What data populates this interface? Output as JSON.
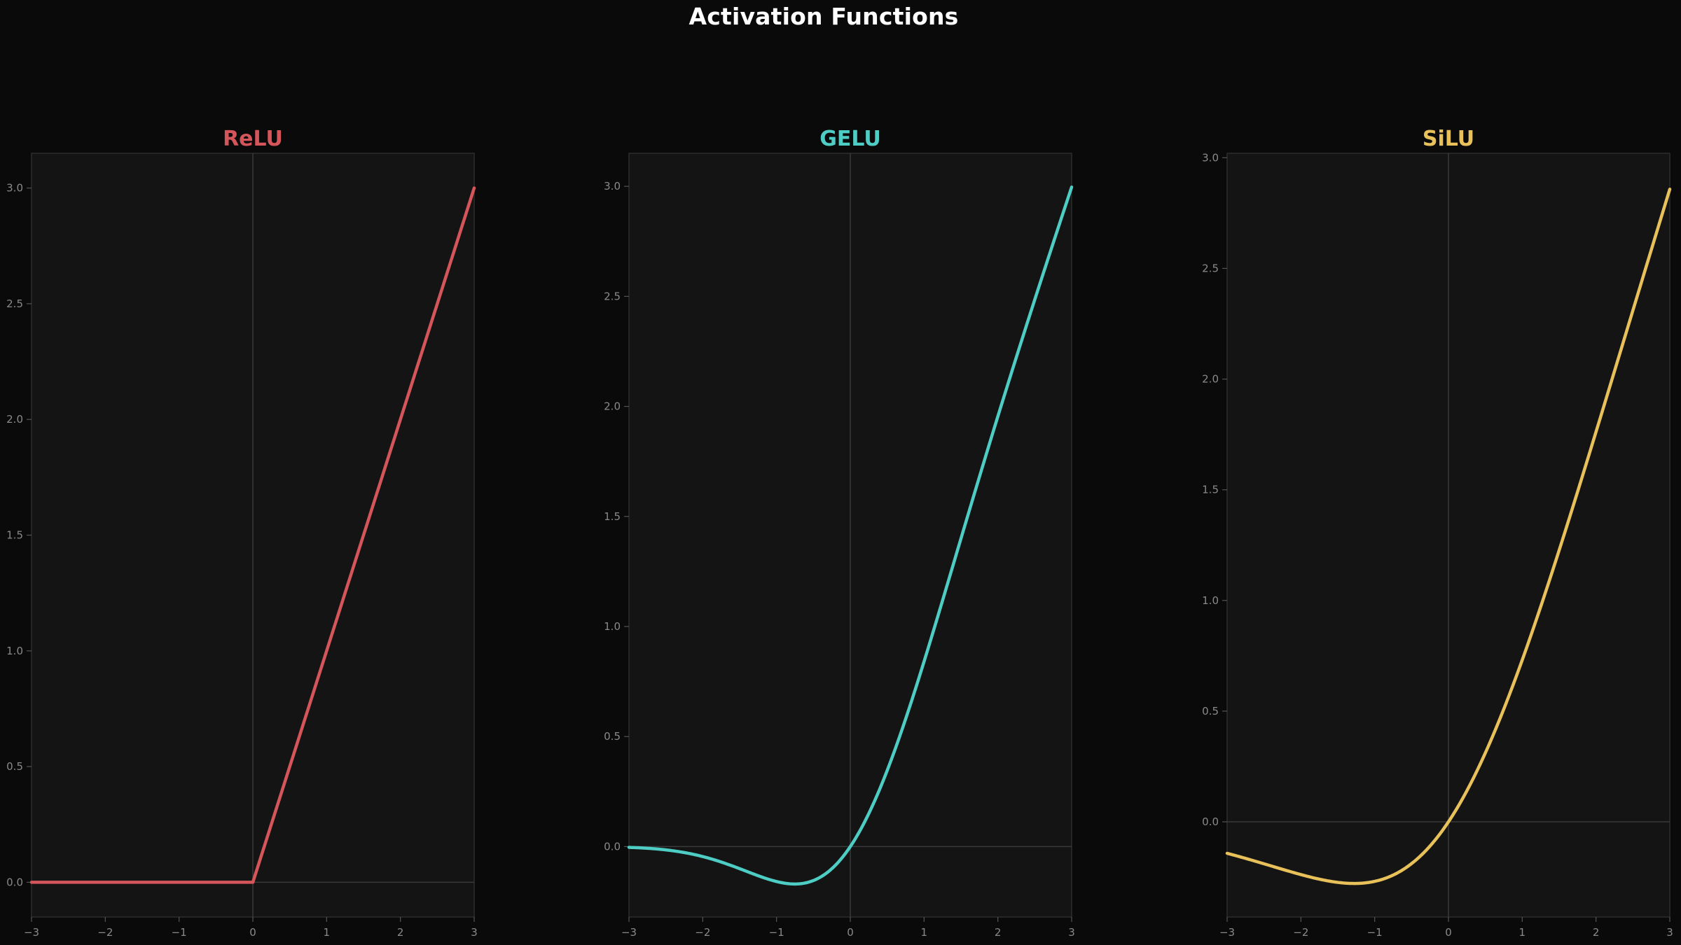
{
  "title": "Activation Functions",
  "chart_data": [
    {
      "type": "line",
      "title": "ReLU",
      "color": "#d4555a",
      "xlim": [
        -3,
        3
      ],
      "ylim": [
        -0.15,
        3.15
      ],
      "xticks": [
        -3,
        -2,
        -1,
        0,
        1,
        2,
        3
      ],
      "xtick_labels": [
        "−3",
        "−2",
        "−1",
        "0",
        "1",
        "2",
        "3"
      ],
      "yticks": [
        0,
        0.5,
        1,
        1.5,
        2,
        2.5,
        3
      ],
      "ytick_labels": [
        "0.0",
        "0.5",
        "1.0",
        "1.5",
        "2.0",
        "2.5",
        "3.0"
      ],
      "function": "relu",
      "series": [
        {
          "x": [
            -3,
            -2,
            -1,
            0,
            1,
            2,
            3
          ],
          "y": [
            0,
            0,
            0,
            0,
            1,
            2,
            3
          ]
        }
      ],
      "grid": false,
      "reference_lines": "x=0, y=0"
    },
    {
      "type": "line",
      "title": "GELU",
      "color": "#4ecdc4",
      "xlim": [
        -3,
        3
      ],
      "ylim": [
        -0.32,
        3.15
      ],
      "xticks": [
        -3,
        -2,
        -1,
        0,
        1,
        2,
        3
      ],
      "xtick_labels": [
        "−3",
        "−2",
        "−1",
        "0",
        "1",
        "2",
        "3"
      ],
      "yticks": [
        0,
        0.5,
        1,
        1.5,
        2,
        2.5,
        3
      ],
      "ytick_labels": [
        "0.0",
        "0.5",
        "1.0",
        "1.5",
        "2.0",
        "2.5",
        "3.0"
      ],
      "function": "gelu",
      "series": [
        {
          "x": [
            -3,
            -2.5,
            -2,
            -1.5,
            -1,
            -0.75,
            -0.5,
            0,
            0.5,
            1,
            1.5,
            2,
            2.5,
            3
          ],
          "y": [
            -0.004,
            -0.016,
            -0.045,
            -0.1,
            -0.159,
            -0.17,
            -0.154,
            0,
            0.346,
            0.841,
            1.4,
            1.955,
            2.484,
            2.996
          ]
        }
      ],
      "grid": false,
      "reference_lines": "x=0, y=0"
    },
    {
      "type": "line",
      "title": "SiLU",
      "color": "#e8c15a",
      "xlim": [
        -3,
        3
      ],
      "ylim": [
        -0.43,
        3.02
      ],
      "xticks": [
        -3,
        -2,
        -1,
        0,
        1,
        2,
        3
      ],
      "xtick_labels": [
        "−3",
        "−2",
        "−1",
        "0",
        "1",
        "2",
        "3"
      ],
      "yticks": [
        0,
        0.5,
        1,
        1.5,
        2,
        2.5,
        3
      ],
      "ytick_labels": [
        "0.0",
        "0.5",
        "1.0",
        "1.5",
        "2.0",
        "2.5",
        "3.0"
      ],
      "function": "silu",
      "series": [
        {
          "x": [
            -3,
            -2.5,
            -2,
            -1.5,
            -1.28,
            -1,
            -0.5,
            0,
            0.5,
            1,
            1.5,
            2,
            2.5,
            3
          ],
          "y": [
            -0.142,
            -0.19,
            -0.238,
            -0.274,
            -0.278,
            -0.269,
            -0.189,
            0,
            0.311,
            0.731,
            1.226,
            1.762,
            2.31,
            2.858
          ]
        }
      ],
      "grid": false,
      "reference_lines": "x=0, y=0"
    }
  ]
}
